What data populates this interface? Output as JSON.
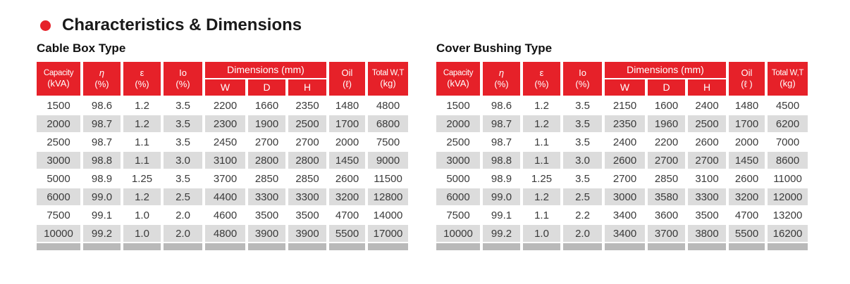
{
  "colors": {
    "accent_red": "#e62129",
    "row_stripe_gray": "#dcdcdc",
    "footer_strip_gray": "#b9b9b9",
    "text_dark": "#3a3a3a"
  },
  "title": {
    "text": "Characteristics & Dimensions"
  },
  "tables": [
    {
      "subtitle": "Cable Box Type",
      "header": {
        "capacity_l1": "Capacity",
        "capacity_l2": "(kVA)",
        "eta_l1": "η",
        "eta_l2": "(%)",
        "epsilon_l1": "ε",
        "epsilon_l2": "(%)",
        "io_l1": "Io",
        "io_l2": "(%)",
        "dimensions": "Dimensions (mm)",
        "w": "W",
        "d": "D",
        "h": "H",
        "oil_l1": "Oil",
        "oil_l2": "(ℓ)",
        "total_l1": "Total W,T",
        "total_l2": "(kg)"
      },
      "rows": [
        [
          "1500",
          "98.6",
          "1.2",
          "3.5",
          "2200",
          "1660",
          "2350",
          "1480",
          "4800"
        ],
        [
          "2000",
          "98.7",
          "1.2",
          "3.5",
          "2300",
          "1900",
          "2500",
          "1700",
          "6800"
        ],
        [
          "2500",
          "98.7",
          "1.1",
          "3.5",
          "2450",
          "2700",
          "2700",
          "2000",
          "7500"
        ],
        [
          "3000",
          "98.8",
          "1.1",
          "3.0",
          "3100",
          "2800",
          "2800",
          "1450",
          "9000"
        ],
        [
          "5000",
          "98.9",
          "1.25",
          "3.5",
          "3700",
          "2850",
          "2850",
          "2600",
          "11500"
        ],
        [
          "6000",
          "99.0",
          "1.2",
          "2.5",
          "4400",
          "3300",
          "3300",
          "3200",
          "12800"
        ],
        [
          "7500",
          "99.1",
          "1.0",
          "2.0",
          "4600",
          "3500",
          "3500",
          "4700",
          "14000"
        ],
        [
          "10000",
          "99.2",
          "1.0",
          "2.0",
          "4800",
          "3900",
          "3900",
          "5500",
          "17000"
        ]
      ]
    },
    {
      "subtitle": "Cover Bushing Type",
      "header": {
        "capacity_l1": "Capacity",
        "capacity_l2": "(kVA)",
        "eta_l1": "η",
        "eta_l2": "(%)",
        "epsilon_l1": "ε",
        "epsilon_l2": "(%)",
        "io_l1": "Io",
        "io_l2": "(%)",
        "dimensions": "Dimensions (mm)",
        "w": "W",
        "d": "D",
        "h": "H",
        "oil_l1": "Oil",
        "oil_l2": "(ℓ )",
        "total_l1": "Total W,T",
        "total_l2": "(kg)"
      },
      "rows": [
        [
          "1500",
          "98.6",
          "1.2",
          "3.5",
          "2150",
          "1600",
          "2400",
          "1480",
          "4500"
        ],
        [
          "2000",
          "98.7",
          "1.2",
          "3.5",
          "2350",
          "1960",
          "2500",
          "1700",
          "6200"
        ],
        [
          "2500",
          "98.7",
          "1.1",
          "3.5",
          "2400",
          "2200",
          "2600",
          "2000",
          "7000"
        ],
        [
          "3000",
          "98.8",
          "1.1",
          "3.0",
          "2600",
          "2700",
          "2700",
          "1450",
          "8600"
        ],
        [
          "5000",
          "98.9",
          "1.25",
          "3.5",
          "2700",
          "2850",
          "3100",
          "2600",
          "11000"
        ],
        [
          "6000",
          "99.0",
          "1.2",
          "2.5",
          "3000",
          "3580",
          "3300",
          "3200",
          "12000"
        ],
        [
          "7500",
          "99.1",
          "1.1",
          "2.2",
          "3400",
          "3600",
          "3500",
          "4700",
          "13200"
        ],
        [
          "10000",
          "99.2",
          "1.0",
          "2.0",
          "3400",
          "3700",
          "3800",
          "5500",
          "16200"
        ]
      ]
    }
  ]
}
